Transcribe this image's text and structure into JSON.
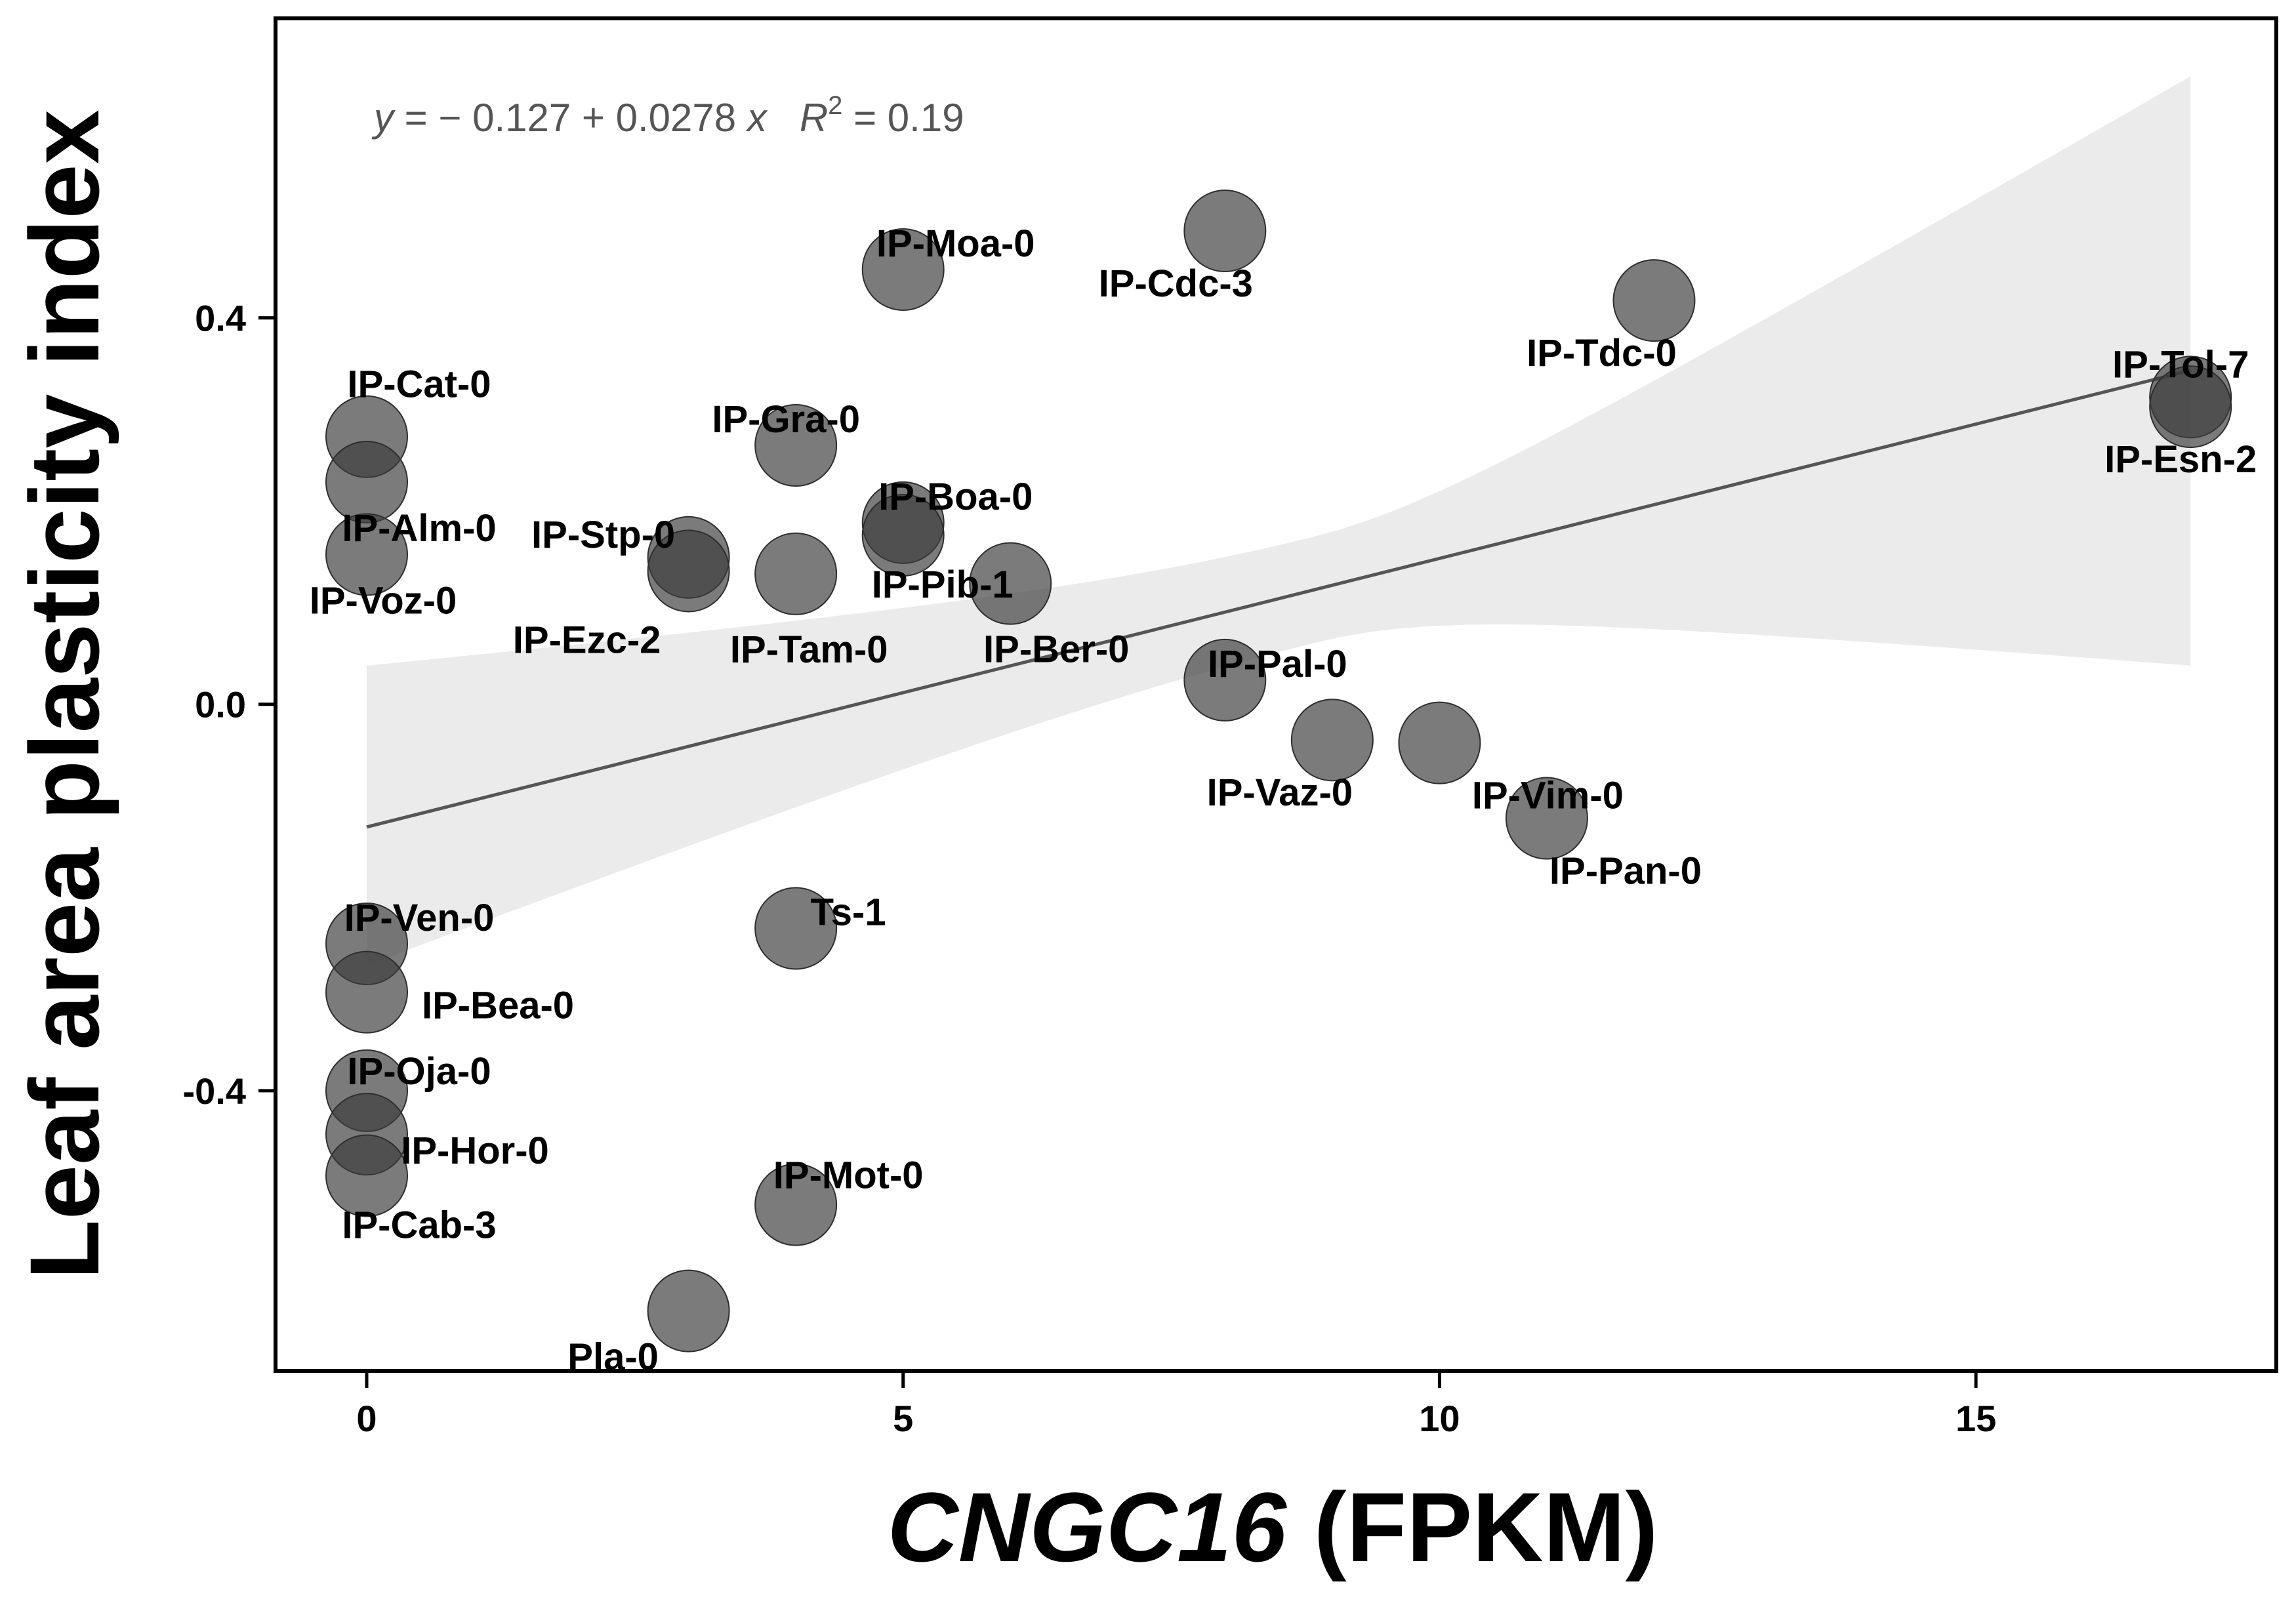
{
  "chart_data": {
    "type": "scatter",
    "xlabel_italic": "CNGC16",
    "xlabel_rest": " (FPKM)",
    "ylabel": "Leaf area plasticity index",
    "xlim": [
      -0.85,
      17.8
    ],
    "ylim": [
      -0.69,
      0.71
    ],
    "x_ticks": [
      0,
      5,
      10,
      15
    ],
    "x_tick_labels": [
      "0",
      "5",
      "10",
      "15"
    ],
    "y_ticks": [
      -0.4,
      0.0,
      0.4
    ],
    "y_tick_labels": [
      "-0.4",
      "0.0",
      "0.4"
    ],
    "grid": false,
    "annotation": {
      "y_var": "y",
      "eq_rest": " = − 0.127 + 0.0278 ",
      "x_var": "x",
      "r_var": "R",
      "r_sup": "2",
      "r_value": " = 0.19"
    },
    "regression": {
      "intercept": -0.127,
      "slope": 0.0278,
      "x_range": [
        0,
        17
      ]
    },
    "confidence_band": {
      "x": [
        0,
        17
      ],
      "upper": [
        0.04,
        0.65
      ],
      "lower": [
        -0.27,
        0.04
      ]
    },
    "points": [
      {
        "label": "IP-Cat-0",
        "x": 0,
        "y": 0.277
      },
      {
        "label": "IP-Alm-0",
        "x": 0,
        "y": 0.23
      },
      {
        "label": "IP-Voz-0",
        "x": 0,
        "y": 0.155
      },
      {
        "label": "IP-Ven-0",
        "x": 0,
        "y": -0.248
      },
      {
        "label": "IP-Bea-0",
        "x": 0,
        "y": -0.298
      },
      {
        "label": "IP-Oja-0",
        "x": 0,
        "y": -0.4
      },
      {
        "label": "IP-Hor-0",
        "x": 0,
        "y": -0.445
      },
      {
        "label": "IP-Cab-3",
        "x": 0,
        "y": -0.488
      },
      {
        "label": "IP-Stp-0",
        "x": 3,
        "y": 0.152
      },
      {
        "label": "IP-Ezc-2",
        "x": 3,
        "y": 0.138
      },
      {
        "label": "Pla-0",
        "x": 3,
        "y": -0.628
      },
      {
        "label": "IP-Gra-0",
        "x": 4,
        "y": 0.268
      },
      {
        "label": "IP-Tam-0",
        "x": 4,
        "y": 0.135
      },
      {
        "label": "Ts-1",
        "x": 4,
        "y": -0.232
      },
      {
        "label": "IP-Mot-0",
        "x": 4,
        "y": -0.518
      },
      {
        "label": "IP-Moa-0",
        "x": 5,
        "y": 0.45
      },
      {
        "label": "IP-Boa-0",
        "x": 5,
        "y": 0.188
      },
      {
        "label": "IP-Pib-1",
        "x": 5,
        "y": 0.175
      },
      {
        "label": "IP-Ber-0",
        "x": 6,
        "y": 0.125
      },
      {
        "label": "IP-Cdc-3",
        "x": 8,
        "y": 0.49
      },
      {
        "label": "IP-Pal-0",
        "x": 8,
        "y": 0.025
      },
      {
        "label": "IP-Vaz-0",
        "x": 9,
        "y": -0.037
      },
      {
        "label": "IP-Vim-0",
        "x": 10,
        "y": -0.04
      },
      {
        "label": "IP-Pan-0",
        "x": 11,
        "y": -0.118
      },
      {
        "label": "IP-Tdc-0",
        "x": 12,
        "y": 0.418
      },
      {
        "label": "IP-Tol-7",
        "x": 17,
        "y": 0.318
      },
      {
        "label": "IP-Esn-2",
        "x": 17,
        "y": 0.308
      }
    ]
  }
}
